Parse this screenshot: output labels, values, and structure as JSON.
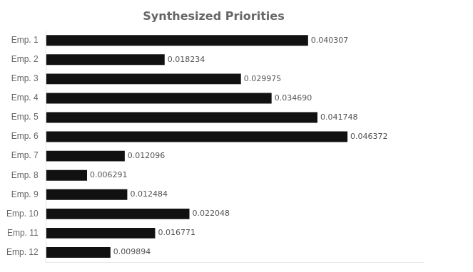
{
  "chart_data": {
    "type": "bar",
    "orientation": "horizontal",
    "title": "Synthesized Priorities",
    "categories": [
      "Emp. 1",
      "Emp. 2",
      "Emp. 3",
      "Emp. 4",
      "Emp. 5",
      "Emp. 6",
      "Emp. 7",
      "Emp. 8",
      "Emp. 9",
      "Emp. 10",
      "Emp. 11",
      "Emp. 12"
    ],
    "values": [
      0.040307,
      0.018234,
      0.029975,
      0.03469,
      0.041748,
      0.046372,
      0.012096,
      0.006291,
      0.012484,
      0.022048,
      0.016771,
      0.009894
    ],
    "value_labels": [
      "0.040307",
      "0.018234",
      "0.029975",
      "0.034690",
      "0.041748",
      "0.046372",
      "0.012096",
      "0.006291",
      "0.012484",
      "0.022048",
      "0.016771",
      "0.009894"
    ],
    "color": "#111111",
    "xlim": [
      0,
      0.058
    ],
    "grid": false,
    "data_labels": true,
    "tick_labels": "y"
  }
}
